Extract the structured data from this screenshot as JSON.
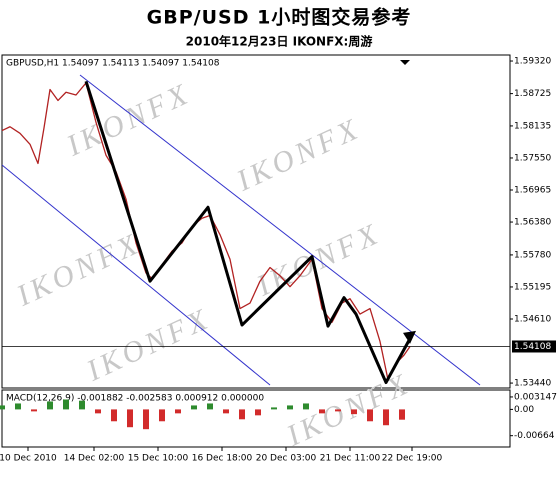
{
  "header": {
    "title": "GBP/USD  1小时图交易参考",
    "subtitle": "2010年12月23日   IKONFX:周游"
  },
  "watermark": "IKONFX",
  "chart_data": [
    {
      "type": "line",
      "label": "GBPUSD,H1  1.54097 1.54113 1.54097 1.54108",
      "xlim": [
        0,
        254
      ],
      "ylim": [
        1.5335,
        1.5943
      ],
      "xticks": [
        {
          "value": 13,
          "label": "10 Dec 2010"
        },
        {
          "value": 46,
          "label": "14 Dec 02:00"
        },
        {
          "value": 78,
          "label": "15 Dec 10:00"
        },
        {
          "value": 110,
          "label": "16 Dec 18:00"
        },
        {
          "value": 142,
          "label": "20 Dec 03:00"
        },
        {
          "value": 174,
          "label": "21 Dec 11:00"
        },
        {
          "value": 205,
          "label": "22 Dec 19:00"
        }
      ],
      "yticks": [
        {
          "value": 1.5932,
          "label": "1.59320"
        },
        1.58725,
        1.58135,
        {
          "value": 1.5755,
          "label": "1.57550"
        },
        1.56965,
        {
          "value": 1.5638,
          "label": "1.56380"
        },
        {
          "value": 1.5578,
          "label": "1.55780"
        },
        1.55195,
        {
          "value": 1.5461,
          "label": "1.54610"
        },
        {
          "value": 1.5344,
          "label": "1.53440"
        }
      ],
      "series": [
        {
          "color": "#b22222",
          "width": 1.3,
          "x": [
            0,
            4,
            9,
            14,
            18,
            21,
            24,
            28,
            32,
            37,
            42,
            47,
            52,
            57,
            62,
            67,
            72,
            75,
            80,
            85,
            90,
            95,
            100,
            104,
            109,
            114,
            119,
            124,
            129,
            134,
            139,
            144,
            149,
            155,
            160,
            165,
            170,
            174,
            179,
            184,
            189,
            193,
            197,
            201,
            204
          ],
          "values": [
            1.5805,
            1.5812,
            1.58,
            1.578,
            1.5745,
            1.581,
            1.588,
            1.586,
            1.5875,
            1.587,
            1.5892,
            1.582,
            1.576,
            1.573,
            1.568,
            1.56,
            1.5545,
            1.5535,
            1.556,
            1.5585,
            1.56,
            1.563,
            1.5645,
            1.565,
            1.5615,
            1.557,
            1.548,
            1.549,
            1.553,
            1.5555,
            1.554,
            1.552,
            1.554,
            1.557,
            1.548,
            1.5455,
            1.549,
            1.5498,
            1.547,
            1.548,
            1.542,
            1.535,
            1.538,
            1.5395,
            1.54108
          ]
        },
        {
          "color": "#000000",
          "width": 3,
          "x": [
            42,
            74,
            103,
            120,
            155,
            163,
            171,
            177,
            192,
            205
          ],
          "values": [
            1.5895,
            1.553,
            1.5665,
            1.545,
            1.5575,
            1.5448,
            1.55,
            1.547,
            1.5345,
            1.5432
          ]
        }
      ]
    },
    {
      "type": "bar",
      "label": "MACD(12,26,9) -0.001882 -0.002583 0.000912 0.000000",
      "xlim": [
        0,
        254
      ],
      "ylim": [
        -0.0095,
        0.0049
      ],
      "yticks": [
        0.003147,
        {
          "value": 0,
          "label": "0.00"
        },
        -0.00664
      ],
      "up_color": "#2e8b2e",
      "down_color": "#d22b2b",
      "x": [
        0,
        8,
        16,
        24,
        32,
        40,
        48,
        56,
        64,
        72,
        80,
        88,
        96,
        104,
        112,
        120,
        128,
        136,
        144,
        152,
        160,
        168,
        176,
        184,
        192,
        200
      ],
      "values": [
        0.001,
        0.0015,
        -0.0005,
        0.002,
        0.0025,
        0.0022,
        -0.001,
        -0.003,
        -0.0045,
        -0.005,
        -0.003,
        -0.001,
        0.001,
        0.0015,
        -0.001,
        -0.0025,
        -0.0015,
        0.0005,
        0.001,
        0.0015,
        -0.001,
        -0.0005,
        -0.0012,
        -0.003,
        -0.004,
        -0.0026
      ]
    }
  ]
}
